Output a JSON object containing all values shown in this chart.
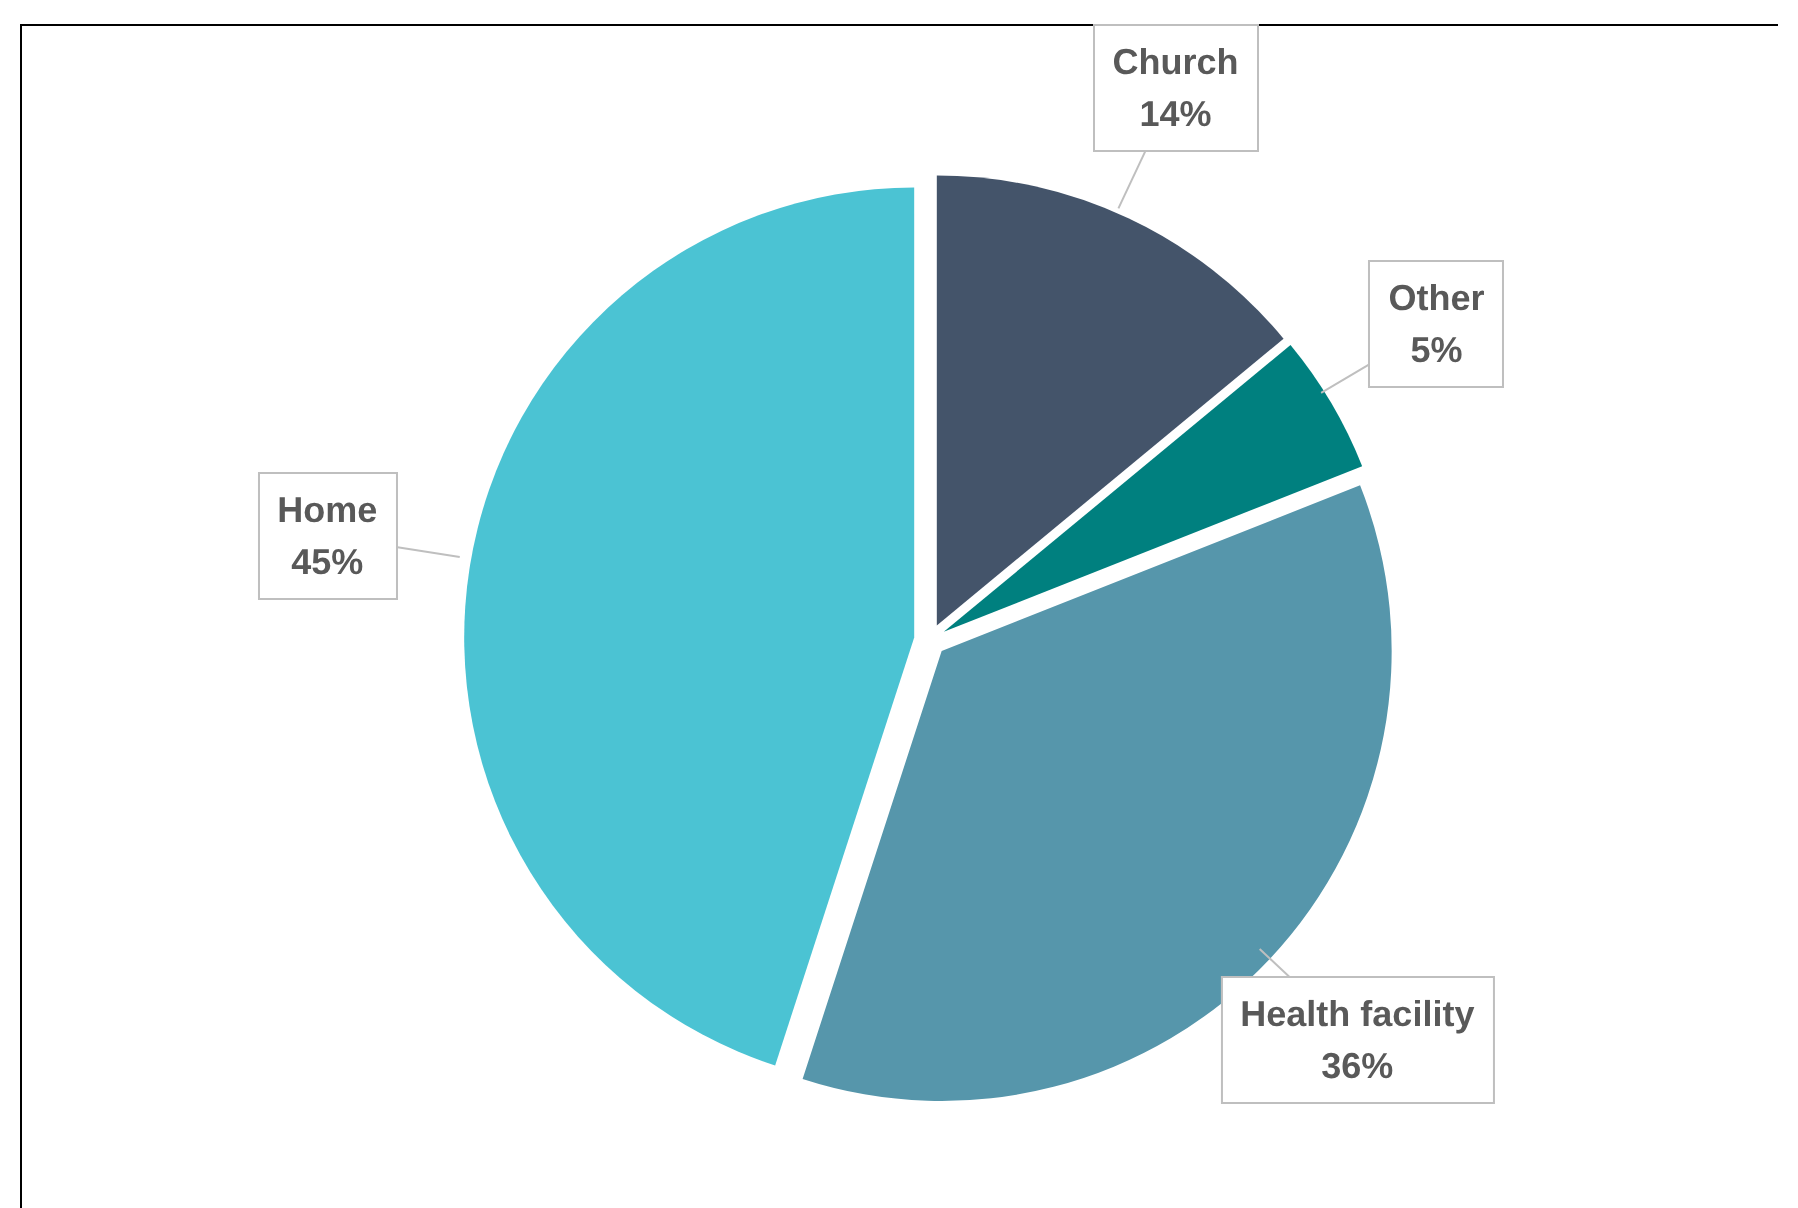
{
  "chart_data": {
    "type": "pie",
    "categories": [
      "Church",
      "Other",
      "Health facility",
      "Home"
    ],
    "values": [
      14,
      5,
      36,
      45
    ],
    "colors": [
      "#44546a",
      "#00807f",
      "#5696ab",
      "#4bc3d3"
    ],
    "value_labels": [
      "14%",
      "5%",
      "36%",
      "45%"
    ]
  }
}
